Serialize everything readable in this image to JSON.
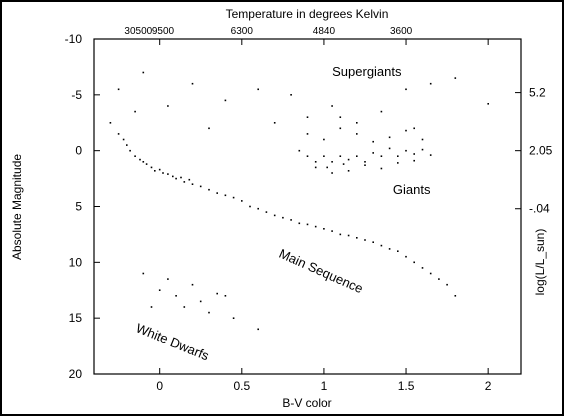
{
  "chart_data": {
    "type": "scatter",
    "title": "Temperature in degrees Kelvin",
    "xlabel": "B-V color",
    "ylabel": "Absolute Magnitude",
    "ylabel_right": "log(L/L_sun)",
    "xlim": [
      -0.4,
      2.2
    ],
    "ylim": [
      20,
      -10
    ],
    "x_ticks": [
      "0",
      "0.5",
      "1",
      "1.5",
      "2"
    ],
    "x_tick_values": [
      0,
      0.5,
      1,
      1.5,
      2
    ],
    "y_ticks": [
      "-10",
      "-5",
      "0",
      "5",
      "10",
      "15",
      "20"
    ],
    "y_tick_values": [
      -10,
      -5,
      0,
      5,
      10,
      15,
      20
    ],
    "top_ticks": [
      "30500",
      "9500",
      "6300",
      "4840",
      "3600"
    ],
    "top_tick_x": [
      -0.13,
      0.02,
      0.5,
      1.0,
      1.47
    ],
    "right_ticks": [
      "5.2",
      "2.05",
      "-.04"
    ],
    "right_tick_y": [
      -5.2,
      0,
      5.2
    ],
    "grid": false,
    "annotations": [
      {
        "text": "Supergiants",
        "x": 1.05,
        "y": -6.7,
        "rotation": 0
      },
      {
        "text": "Giants",
        "x": 1.42,
        "y": 3.9,
        "rotation": 0
      },
      {
        "text": "Main Sequence",
        "x": 0.72,
        "y": 9.5,
        "rotation": 24
      },
      {
        "text": "White Dwarfs",
        "x": -0.15,
        "y": 16.2,
        "rotation": 22
      }
    ],
    "series": [
      {
        "name": "",
        "x": [
          -0.3,
          -0.25,
          -0.22,
          -0.2,
          -0.18,
          -0.15,
          -0.12,
          -0.1,
          -0.08,
          -0.05,
          -0.03,
          0,
          0.02,
          0.05,
          0.08,
          0.1,
          0.13,
          0.15,
          0.18,
          0.2,
          0.25,
          0.3,
          0.35,
          0.4,
          0.45,
          0.5,
          0.55,
          0.6,
          0.65,
          0.7,
          0.75,
          0.8,
          0.85,
          0.9,
          0.95,
          1.0,
          1.05,
          1.1,
          1.15,
          1.2,
          1.25,
          1.3,
          1.35,
          1.4,
          1.45,
          1.5,
          1.55,
          1.6,
          1.65,
          1.7,
          1.75,
          1.8
        ],
        "y": [
          -2.5,
          -1.5,
          -1,
          -0.5,
          0,
          0.5,
          0.8,
          1,
          1.2,
          1.5,
          1.8,
          1.7,
          2,
          2.1,
          2.3,
          2.5,
          2.4,
          2.8,
          2.6,
          3,
          3.2,
          3.5,
          3.8,
          4,
          4.2,
          4.5,
          5,
          5.2,
          5.5,
          5.8,
          6,
          6.2,
          6.5,
          6.6,
          6.8,
          7,
          7.2,
          7.5,
          7.6,
          7.8,
          8,
          8.2,
          8.5,
          8.8,
          9,
          9.5,
          10,
          10.5,
          11,
          11.5,
          12,
          13
        ]
      },
      {
        "name": "",
        "x": [
          0.85,
          0.9,
          0.95,
          1.0,
          1.02,
          1.05,
          1.1,
          1.12,
          1.15,
          1.2,
          1.25,
          1.3,
          1.35,
          1.4,
          1.45,
          1.5,
          1.55,
          1.6,
          1.65,
          0.9,
          1.0,
          1.1,
          1.2,
          1.3,
          1.4,
          1.5,
          1.6,
          0.95,
          1.05,
          1.15,
          1.25,
          1.35,
          1.45,
          1.55
        ],
        "y": [
          0,
          0.5,
          1,
          0.5,
          1.5,
          1,
          0.5,
          1.2,
          0.8,
          0.5,
          1,
          0.2,
          0.5,
          -0.2,
          0.5,
          0,
          0.3,
          -0.1,
          0.4,
          -1.5,
          -1,
          -2,
          -1.5,
          -0.8,
          -1.2,
          -1.8,
          -1,
          1.5,
          2,
          1.8,
          1.3,
          1.6,
          1.1,
          0.9
        ]
      },
      {
        "name": "",
        "x": [
          -0.25,
          -0.1,
          0.05,
          0.2,
          0.4,
          0.6,
          0.8,
          0.9,
          1.05,
          1.2,
          1.35,
          1.5,
          1.65,
          1.8,
          2.0,
          -0.15,
          0.3,
          0.7,
          1.1,
          1.55
        ],
        "y": [
          -5.5,
          -7,
          -4,
          -6,
          -4.5,
          -5.5,
          -5,
          -3,
          -4,
          -2.5,
          -3.5,
          -5.5,
          -6,
          -6.5,
          -4.2,
          -3.5,
          -2,
          -2.5,
          -3,
          -2
        ]
      },
      {
        "name": "",
        "x": [
          -0.1,
          0.0,
          0.05,
          0.1,
          0.15,
          0.2,
          0.25,
          0.3,
          0.35,
          0.45,
          0.6,
          -0.05,
          0.4
        ],
        "y": [
          11,
          12.5,
          11.5,
          13,
          14,
          12,
          13.5,
          14.5,
          12.8,
          15,
          16,
          14,
          13
        ]
      }
    ]
  }
}
